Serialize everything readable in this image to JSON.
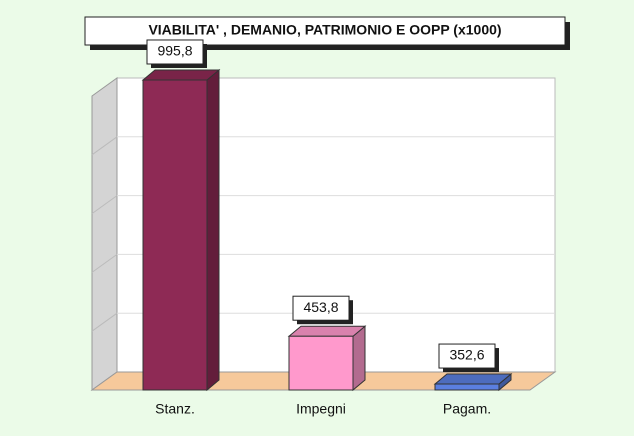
{
  "chart_data": {
    "type": "bar3d",
    "title": "VIABILITA' , DEMANIO, PATRIMONIO E OOPP (x1000)",
    "categories": [
      "Stanz.",
      "Impegni",
      "Pagam."
    ],
    "values": [
      995.8,
      453.8,
      352.6
    ],
    "value_labels": [
      "995,8",
      "453,8",
      "352,6"
    ],
    "colors": [
      "#8e2a55",
      "#ff99cc",
      "#5b7fe0"
    ],
    "ylim": [
      340,
      1000
    ],
    "grid": true
  }
}
